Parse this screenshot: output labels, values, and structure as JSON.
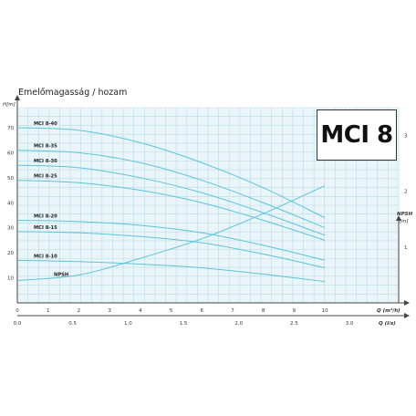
{
  "title": "Emelőmagasság / hozam",
  "badge": "MCI 8",
  "colors": {
    "grid": "#b8dbe6",
    "plot_bg": "#eaf5f9",
    "curve": "#5bc4dc",
    "text": "#333333"
  },
  "chart_data": {
    "type": "line",
    "title": "Emelőmagasság / hozam",
    "y_left": {
      "label": "H[m]",
      "ticks": [
        "10",
        "20",
        "30",
        "40",
        "50",
        "60",
        "70"
      ],
      "range": [
        0,
        78
      ]
    },
    "y_right": {
      "label_top": "NPSH",
      "label_unit": "[m]",
      "ticks": [
        "1",
        "2",
        "3"
      ],
      "range": [
        0,
        3.5
      ]
    },
    "x_top": {
      "label": "Q (m³/h)",
      "ticks": [
        "0",
        "1",
        "2",
        "3",
        "4",
        "5",
        "6",
        "7",
        "8",
        "9",
        "10"
      ],
      "range": [
        0,
        12.4
      ]
    },
    "x_bottom": {
      "label": "Q (l/s)",
      "ticks": [
        "0.0",
        "0.5",
        "1.0",
        "1.5",
        "2.0",
        "2.5",
        "3.0"
      ],
      "range": [
        0,
        3.444
      ]
    },
    "grid": true,
    "series": [
      {
        "name": "MCI 8-40",
        "axis": "left",
        "x": [
          0,
          2,
          4,
          6,
          8,
          10
        ],
        "y": [
          70,
          69,
          64,
          56,
          46,
          34
        ]
      },
      {
        "name": "MCI 8-35",
        "axis": "left",
        "x": [
          0,
          2,
          4,
          6,
          8,
          10
        ],
        "y": [
          61,
          60,
          56,
          49,
          40,
          30
        ]
      },
      {
        "name": "MCI 8-30",
        "axis": "left",
        "x": [
          0,
          2,
          4,
          6,
          8,
          10
        ],
        "y": [
          55,
          54,
          50,
          44,
          36,
          27
        ]
      },
      {
        "name": "MCI 8-25",
        "axis": "left",
        "x": [
          0,
          2,
          4,
          6,
          8,
          10
        ],
        "y": [
          49,
          48,
          45,
          40,
          33,
          25
        ]
      },
      {
        "name": "MCI 8-20",
        "axis": "left",
        "x": [
          0,
          2,
          4,
          6,
          8,
          10
        ],
        "y": [
          33,
          32.5,
          31,
          28,
          23,
          17
        ]
      },
      {
        "name": "MCI 8-15",
        "axis": "left",
        "x": [
          0,
          2,
          4,
          6,
          8,
          10
        ],
        "y": [
          28.5,
          28,
          26.5,
          24,
          19.5,
          14
        ]
      },
      {
        "name": "MCI 8-10",
        "axis": "left",
        "x": [
          0,
          2,
          4,
          6,
          8,
          10
        ],
        "y": [
          17,
          16.5,
          15.5,
          14,
          11.5,
          8.5
        ]
      },
      {
        "name": "NPSH",
        "axis": "right",
        "x": [
          0,
          2,
          4,
          6,
          8,
          10
        ],
        "y": [
          0.4,
          0.5,
          0.8,
          1.15,
          1.6,
          2.1
        ]
      }
    ]
  }
}
